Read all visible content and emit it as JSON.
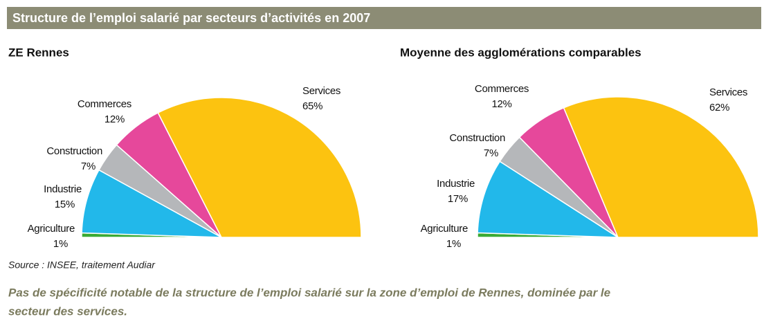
{
  "header": {
    "title": "Structure de l’emploi salarié par secteurs d’activités en 2007"
  },
  "chart_data": [
    {
      "type": "pie",
      "title": "ZE Rennes",
      "categories": [
        "Agriculture",
        "Industrie",
        "Construction",
        "Commerces",
        "Services"
      ],
      "values": [
        1,
        15,
        7,
        12,
        65
      ],
      "value_labels": [
        "1%",
        "15%",
        "7%",
        "12%",
        "65%"
      ],
      "colors": [
        "#3aaa35",
        "#22b8ea",
        "#b5b7ba",
        "#e6489b",
        "#fcc310"
      ]
    },
    {
      "type": "pie",
      "title": "Moyenne des agglomérations comparables",
      "categories": [
        "Agriculture",
        "Industrie",
        "Construction",
        "Commerces",
        "Services"
      ],
      "values": [
        1,
        17,
        7,
        12,
        62
      ],
      "value_labels": [
        "1%",
        "17%",
        "7%",
        "12%",
        "62%"
      ],
      "colors": [
        "#3aaa35",
        "#22b8ea",
        "#b5b7ba",
        "#e6489b",
        "#fcc310"
      ]
    }
  ],
  "source": "Source : INSEE, traitement Audiar",
  "caption": [
    "Pas de spécificité notable de la structure de l’emploi salarié sur la zone d’emploi de Rennes, dominée par le",
    "secteur des services."
  ]
}
